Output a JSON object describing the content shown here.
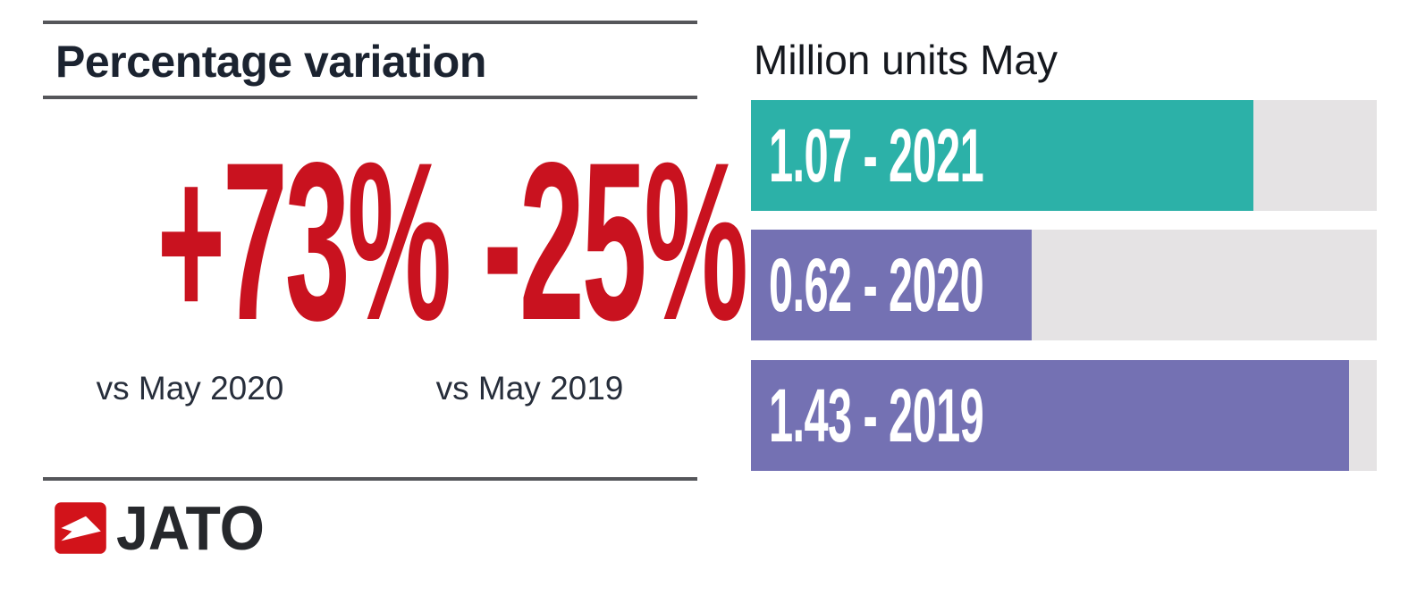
{
  "left_panel": {
    "title": "Percentage variation",
    "accent_color": "#c9121f",
    "stats": [
      {
        "value": "+73%",
        "caption": "vs May 2020"
      },
      {
        "value": "-25%",
        "caption": "vs May 2019"
      }
    ]
  },
  "logo": {
    "text": "JATO",
    "square_color": "#d2131a",
    "arrow_color": "#ffffff",
    "icon": "jato-arrow-icon"
  },
  "chart_data": {
    "type": "bar",
    "orientation": "horizontal",
    "title": "Million units May",
    "categories": [
      "2021",
      "2020",
      "2019"
    ],
    "values": [
      1.07,
      0.62,
      1.43
    ],
    "xlabel": "",
    "ylabel": "",
    "xlim": [
      0,
      1.5
    ],
    "grid": false,
    "legend": false,
    "track_color": "#e5e3e4",
    "bars": [
      {
        "label": "1.07 - 2021",
        "value": 1.07,
        "year": "2021",
        "color": "#2cb1a8",
        "width_pct": 80.3
      },
      {
        "label": "0.62 - 2020",
        "value": 0.62,
        "year": "2020",
        "color": "#7471b3",
        "width_pct": 44.8
      },
      {
        "label": "1.43 - 2019",
        "value": 1.43,
        "year": "2019",
        "color": "#7471b3",
        "width_pct": 95.6
      }
    ]
  }
}
